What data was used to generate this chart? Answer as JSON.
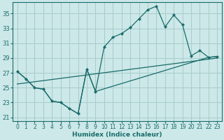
{
  "xlabel": "Humidex (Indice chaleur)",
  "bg_color": "#cce8e8",
  "grid_color": "#a8cccc",
  "line_color": "#1a6b6b",
  "line1_x": [
    0,
    1,
    2,
    3,
    4,
    5,
    6,
    7,
    8,
    9,
    10,
    11,
    12,
    13,
    14,
    15,
    16,
    17,
    18,
    19,
    20,
    21,
    22,
    23
  ],
  "line1_y": [
    27.2,
    26.2,
    25.0,
    24.8,
    23.2,
    23.0,
    22.2,
    21.5,
    27.5,
    24.5,
    30.5,
    31.8,
    32.3,
    33.1,
    34.3,
    35.5,
    36.0,
    33.2,
    34.8,
    33.5,
    29.3,
    30.0,
    29.1,
    29.2
  ],
  "line2_x": [
    0,
    1,
    2,
    3,
    4,
    5,
    6,
    7,
    8,
    9,
    22,
    23
  ],
  "line2_y": [
    27.2,
    26.2,
    25.0,
    24.8,
    23.2,
    23.0,
    22.2,
    21.5,
    27.5,
    24.5,
    29.1,
    29.2
  ],
  "line3_x": [
    0,
    23
  ],
  "line3_y": [
    25.5,
    29.0
  ],
  "xlim": [
    -0.5,
    23.5
  ],
  "ylim": [
    20.5,
    36.5
  ],
  "yticks": [
    21,
    23,
    25,
    27,
    29,
    31,
    33,
    35
  ],
  "xticks": [
    0,
    1,
    2,
    3,
    4,
    5,
    6,
    7,
    8,
    9,
    10,
    11,
    12,
    13,
    14,
    15,
    16,
    17,
    18,
    19,
    20,
    21,
    22,
    23
  ]
}
